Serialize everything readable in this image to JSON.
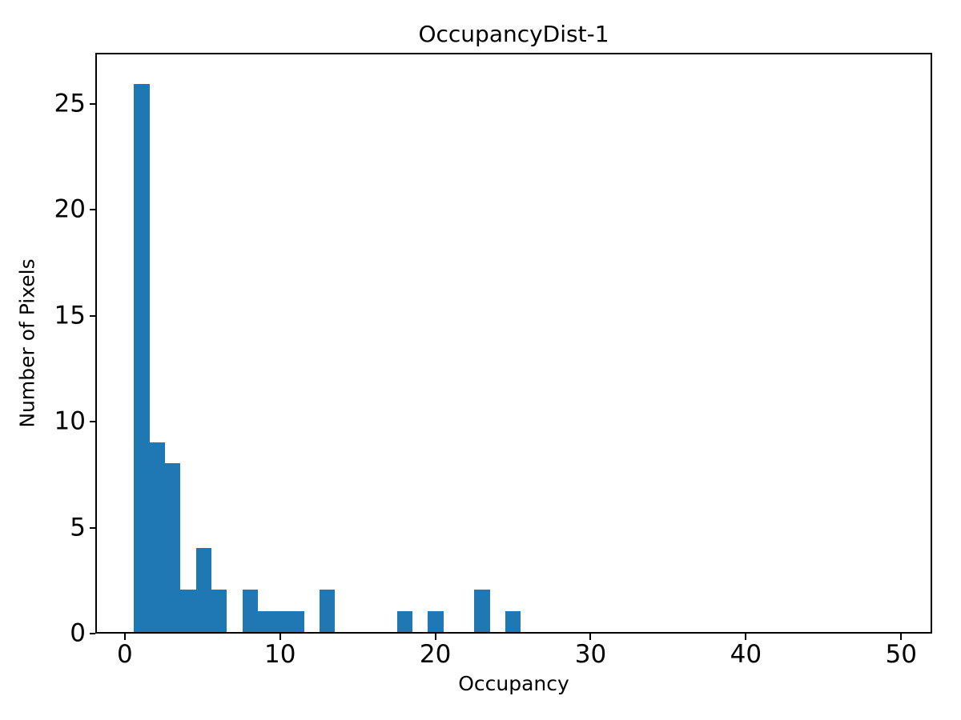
{
  "chart_data": {
    "type": "bar",
    "subtype": "histogram",
    "title": "OccupancyDist-1",
    "xlabel": "Occupancy",
    "ylabel": "Number of Pixels",
    "bin_centers": [
      1,
      2,
      3,
      4,
      5,
      6,
      7,
      8,
      9,
      10,
      11,
      12,
      13,
      14,
      15,
      16,
      17,
      18,
      19,
      20,
      21,
      22,
      23,
      24,
      25
    ],
    "counts": [
      26,
      9,
      8,
      2,
      4,
      2,
      0,
      2,
      1,
      1,
      1,
      0,
      2,
      0,
      0,
      0,
      0,
      1,
      0,
      1,
      0,
      0,
      2,
      0,
      1
    ],
    "bin_width": 1,
    "x_ticks": [
      0,
      10,
      20,
      30,
      40,
      50
    ],
    "y_ticks": [
      0,
      5,
      10,
      15,
      20,
      25
    ],
    "xlim": [
      -1.9,
      52.0
    ],
    "ylim": [
      0,
      27.4
    ],
    "grid": false,
    "legend": null,
    "colors": {
      "bar": "#1f77b4",
      "text": "#000000",
      "spine": "#000000",
      "background": "#ffffff"
    }
  }
}
